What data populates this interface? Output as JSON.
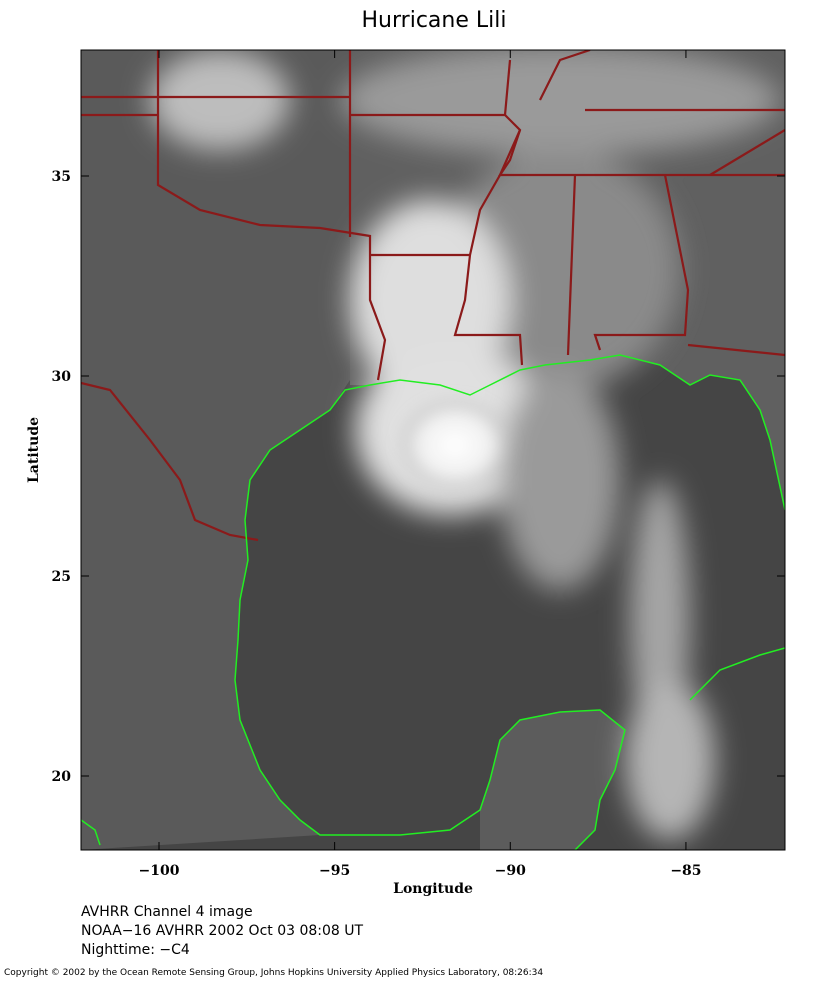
{
  "map": {
    "title": "Hurricane Lili",
    "xlabel": "Longitude",
    "ylabel": "Latitude",
    "xlim": [
      -102.22,
      -82.18
    ],
    "ylim": [
      18.15,
      38.15
    ],
    "xticks": [
      {
        "value": -100,
        "label": "−100"
      },
      {
        "value": -95,
        "label": "−95"
      },
      {
        "value": -90,
        "label": "−90"
      },
      {
        "value": -85,
        "label": "−85"
      }
    ],
    "yticks": [
      20,
      25,
      30,
      35
    ]
  },
  "caption": [
    "AVHRR Channel 4 image",
    "NOAA−16 AVHRR 2002 Oct 03 08:08 UT",
    "Nighttime: −C4"
  ],
  "copyright": "Copyright © 2002 by the Ocean Remote Sensing Group, Johns Hopkins University Applied Physics Laboratory, 08:26:34"
}
